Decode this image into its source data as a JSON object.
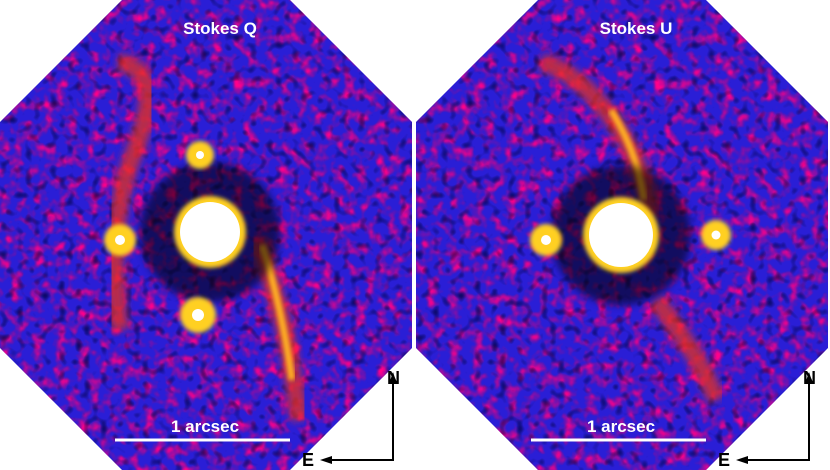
{
  "panels": [
    {
      "title": "Stokes Q",
      "scale_label": "1 arcsec",
      "north": "N",
      "east": "E"
    },
    {
      "title": "Stokes U",
      "scale_label": "1 arcsec",
      "north": "N",
      "east": "E"
    }
  ]
}
